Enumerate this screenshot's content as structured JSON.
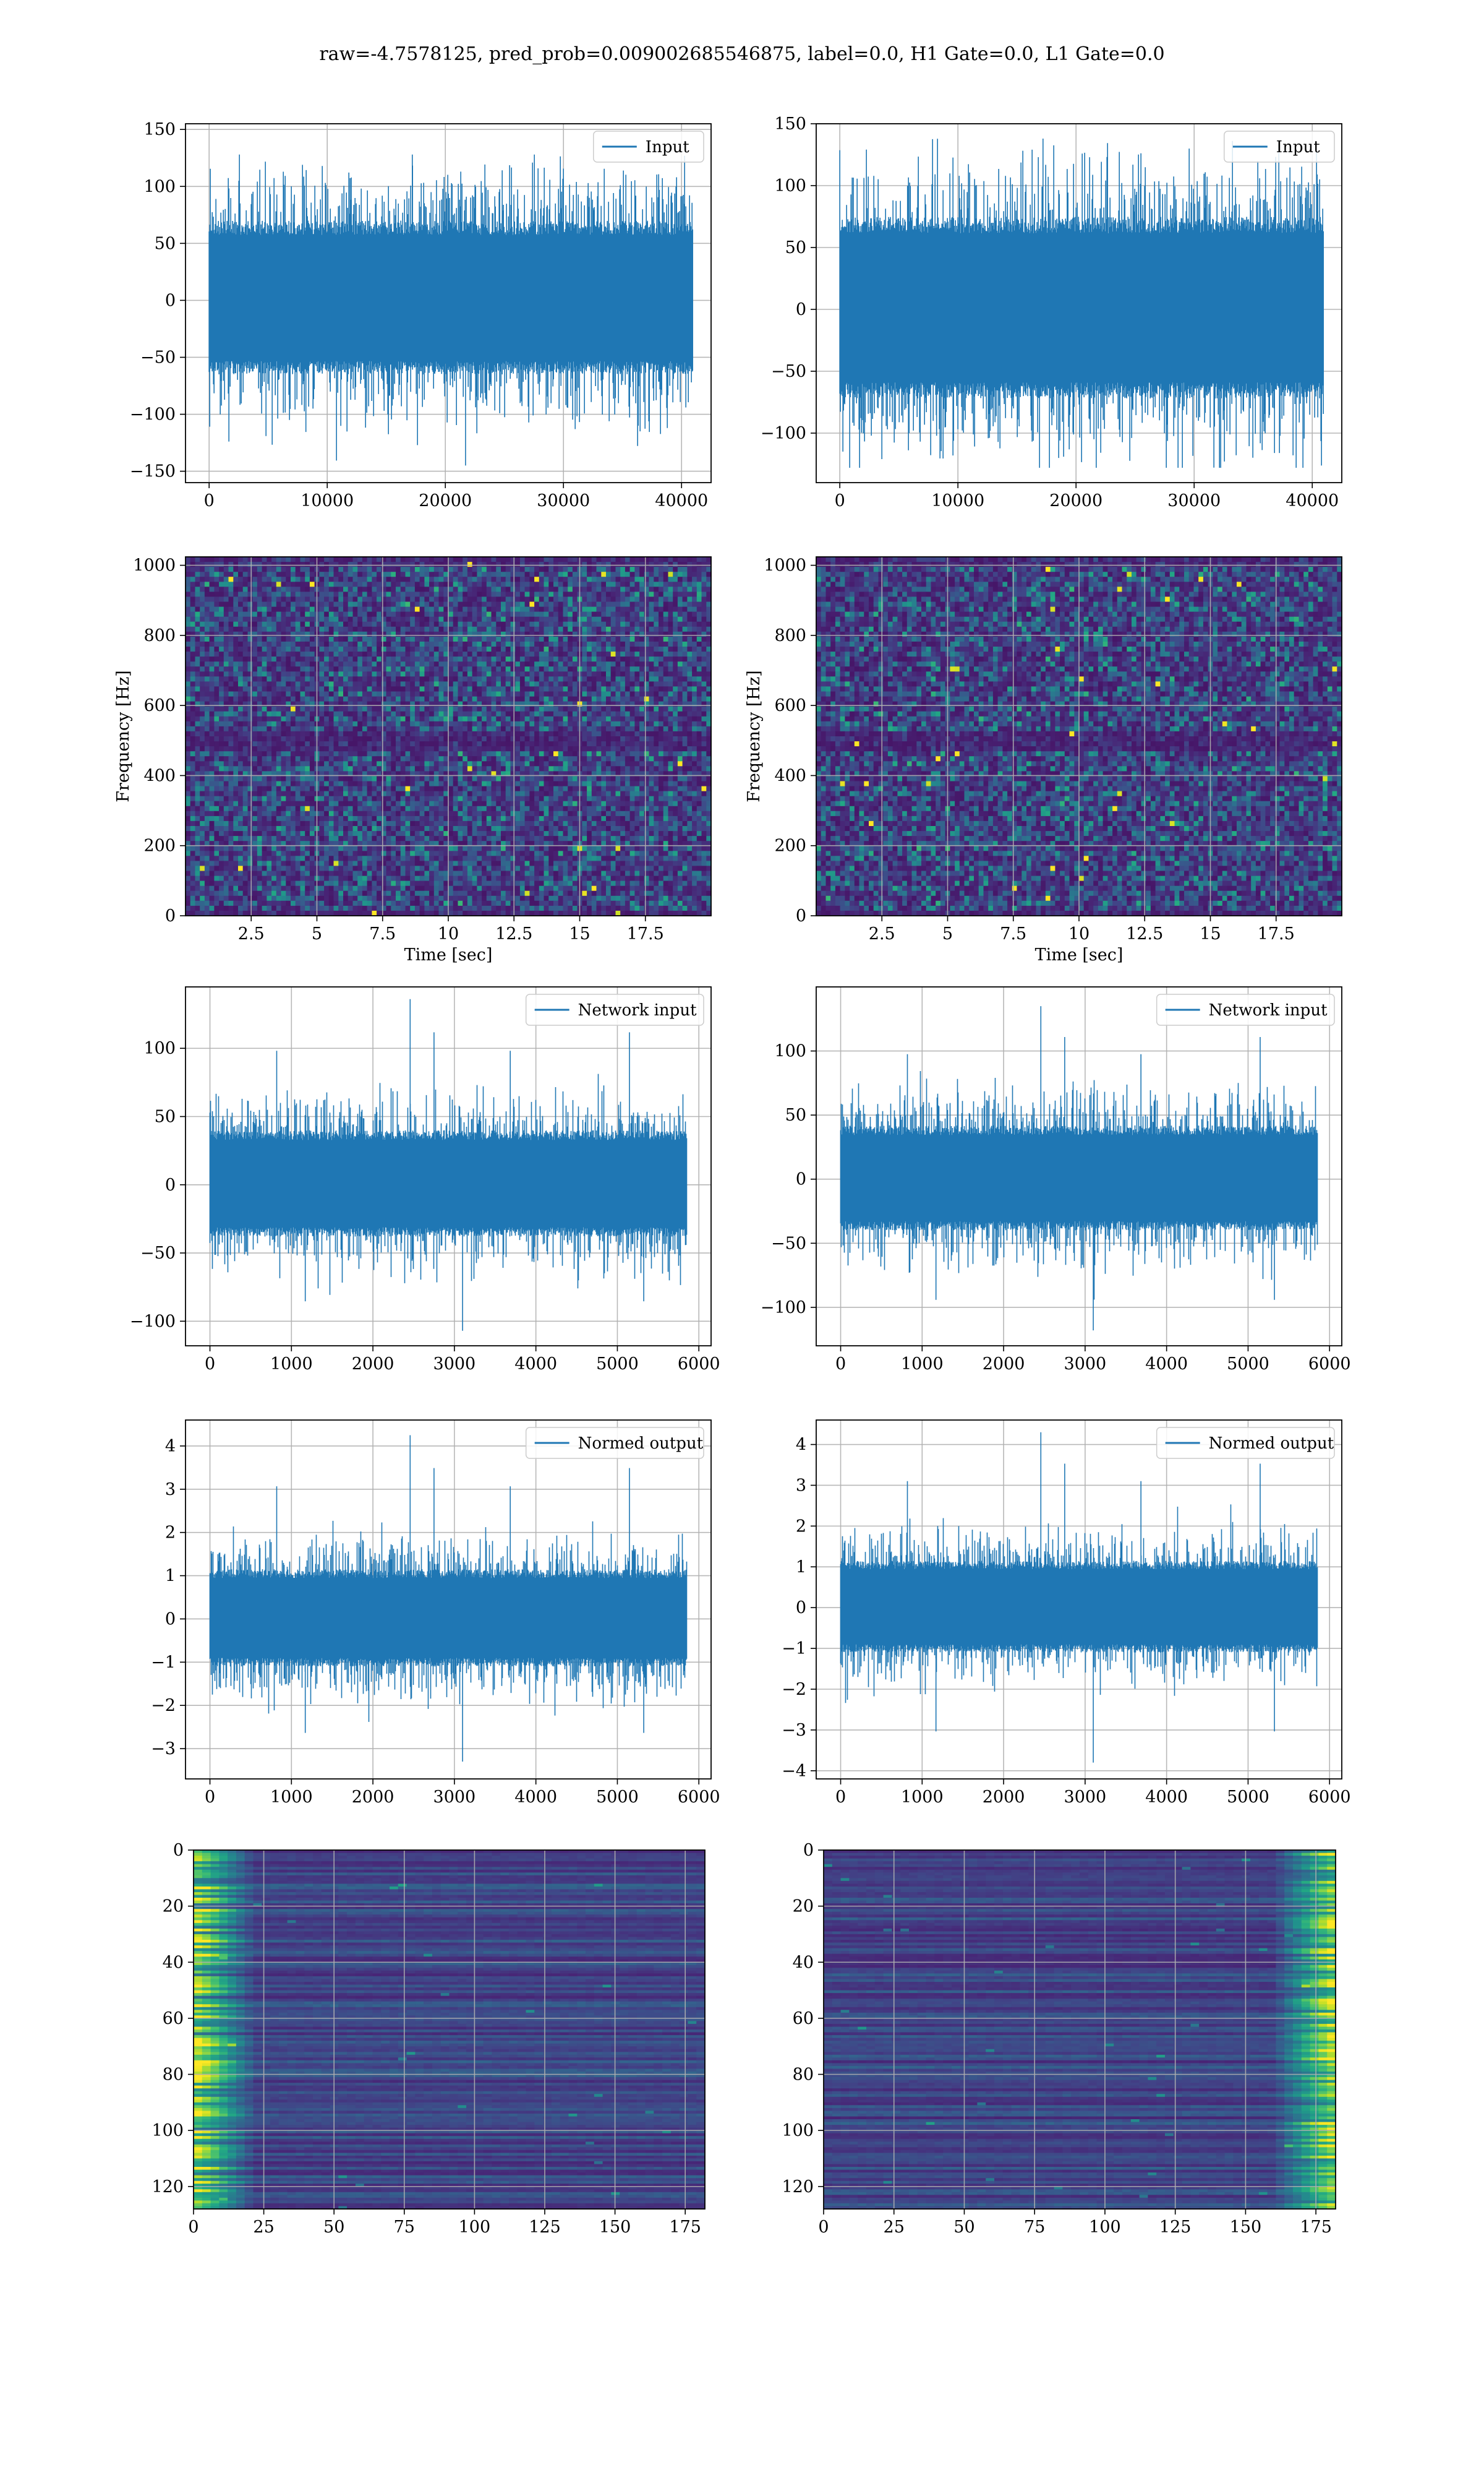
{
  "figure": {
    "title": "raw=-4.7578125, pred_prob=0.009002685546875, label=0.0, H1 Gate=0.0, L1 Gate=0.0"
  },
  "colors": {
    "series": "#1f77b4",
    "grid": "#b0b0b0",
    "viridis_low": "#440154",
    "viridis_high": "#fde725"
  },
  "chart_data": [
    {
      "id": "input-left",
      "type": "line",
      "legend": [
        "Input"
      ],
      "xlim": [
        -2000,
        42500
      ],
      "ylim": [
        -160,
        155
      ],
      "xticks": [
        0,
        10000,
        20000,
        30000,
        40000
      ],
      "yticks": [
        -150,
        -100,
        -50,
        0,
        50,
        100,
        150
      ],
      "x_range": [
        0,
        40960
      ],
      "band": [
        -65,
        70
      ],
      "peak": [
        -145,
        128
      ],
      "xlabel": "",
      "ylabel": "",
      "grid": true,
      "legend_loc": "upper right"
    },
    {
      "id": "input-right",
      "type": "line",
      "legend": [
        "Input"
      ],
      "xlim": [
        -2000,
        42500
      ],
      "ylim": [
        -140,
        150
      ],
      "xticks": [
        0,
        10000,
        20000,
        30000,
        40000
      ],
      "yticks": [
        -100,
        -50,
        0,
        50,
        100,
        150
      ],
      "x_range": [
        0,
        40960
      ],
      "band": [
        -72,
        75
      ],
      "peak": [
        -128,
        138
      ],
      "xlabel": "",
      "ylabel": "",
      "grid": true,
      "legend_loc": "upper right"
    },
    {
      "id": "spec-left",
      "type": "heatmap",
      "xlim": [
        0,
        20
      ],
      "ylim": [
        0,
        1024
      ],
      "xticks": [
        2.5,
        5.0,
        7.5,
        10.0,
        12.5,
        15.0,
        17.5
      ],
      "yticks": [
        0,
        200,
        400,
        600,
        800,
        1000
      ],
      "xlabel": "Time [sec]",
      "ylabel": "Frequency [Hz]",
      "grid": true
    },
    {
      "id": "spec-right",
      "type": "heatmap",
      "xlim": [
        0,
        20
      ],
      "ylim": [
        0,
        1024
      ],
      "xticks": [
        2.5,
        5.0,
        7.5,
        10.0,
        12.5,
        15.0,
        17.5
      ],
      "yticks": [
        0,
        200,
        400,
        600,
        800,
        1000
      ],
      "xlabel": "Time [sec]",
      "ylabel": "Frequency [Hz]",
      "grid": true
    },
    {
      "id": "net-left",
      "type": "line",
      "legend": [
        "Network input"
      ],
      "xlim": [
        -300,
        6150
      ],
      "ylim": [
        -118,
        145
      ],
      "xticks": [
        0,
        1000,
        2000,
        3000,
        4000,
        5000,
        6000
      ],
      "yticks": [
        -100,
        -50,
        0,
        50,
        100
      ],
      "x_range": [
        0,
        5850
      ],
      "band": [
        -38,
        40
      ],
      "peak": [
        -107,
        136
      ],
      "xlabel": "",
      "ylabel": "",
      "grid": true,
      "legend_loc": "upper right"
    },
    {
      "id": "net-right",
      "type": "line",
      "legend": [
        "Network input"
      ],
      "xlim": [
        -300,
        6150
      ],
      "ylim": [
        -130,
        150
      ],
      "xticks": [
        0,
        1000,
        2000,
        3000,
        4000,
        5000,
        6000
      ],
      "yticks": [
        -100,
        -50,
        0,
        50,
        100
      ],
      "x_range": [
        0,
        5850
      ],
      "band": [
        -40,
        42
      ],
      "peak": [
        -118,
        135
      ],
      "xlabel": "",
      "ylabel": "",
      "grid": true,
      "legend_loc": "upper right"
    },
    {
      "id": "norm-left",
      "type": "line",
      "legend": [
        "Normed output"
      ],
      "xlim": [
        -300,
        6150
      ],
      "ylim": [
        -3.7,
        4.6
      ],
      "xticks": [
        0,
        1000,
        2000,
        3000,
        4000,
        5000,
        6000
      ],
      "yticks": [
        -3,
        -2,
        -1,
        0,
        1,
        2,
        3,
        4
      ],
      "x_range": [
        0,
        5850
      ],
      "band": [
        -1.1,
        1.15
      ],
      "peak": [
        -3.3,
        4.25
      ],
      "xlabel": "",
      "ylabel": "",
      "grid": true,
      "legend_loc": "upper right"
    },
    {
      "id": "norm-right",
      "type": "line",
      "legend": [
        "Normed output"
      ],
      "xlim": [
        -300,
        6150
      ],
      "ylim": [
        -4.2,
        4.6
      ],
      "xticks": [
        0,
        1000,
        2000,
        3000,
        4000,
        5000,
        6000
      ],
      "yticks": [
        -4,
        -3,
        -2,
        -1,
        0,
        1,
        2,
        3,
        4
      ],
      "x_range": [
        0,
        5850
      ],
      "band": [
        -1.1,
        1.15
      ],
      "peak": [
        -3.8,
        4.3
      ],
      "xlabel": "",
      "ylabel": "",
      "grid": true,
      "legend_loc": "upper right"
    },
    {
      "id": "feat-left",
      "type": "heatmap",
      "xlim": [
        0,
        182
      ],
      "ylim": [
        128,
        0
      ],
      "xticks": [
        0,
        25,
        50,
        75,
        100,
        125,
        150,
        175
      ],
      "yticks": [
        0,
        20,
        40,
        60,
        80,
        100,
        120
      ],
      "xlabel": "",
      "ylabel": "",
      "grid": true,
      "hot_side": "left"
    },
    {
      "id": "feat-right",
      "type": "heatmap",
      "xlim": [
        0,
        182
      ],
      "ylim": [
        128,
        0
      ],
      "xticks": [
        0,
        25,
        50,
        75,
        100,
        125,
        150,
        175
      ],
      "yticks": [
        0,
        20,
        40,
        60,
        80,
        100,
        120
      ],
      "xlabel": "",
      "ylabel": "",
      "grid": true,
      "hot_side": "right"
    }
  ]
}
